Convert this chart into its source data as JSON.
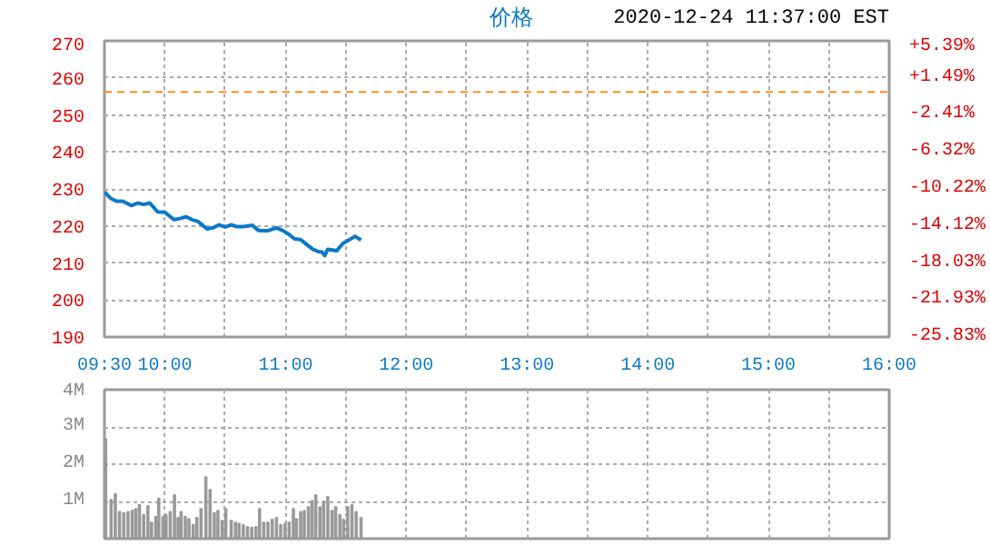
{
  "chart_data": [
    {
      "type": "line",
      "legend": "top",
      "grid": true,
      "marker": "none",
      "line_style": "solid",
      "annotations": [
        "2020-12-24 11:37:00 EST"
      ],
      "xlim": [
        9.5,
        16
      ],
      "xticks": [
        {
          "value": 9.5,
          "label": "09:30"
        },
        {
          "value": 10,
          "label": "10:00"
        },
        {
          "value": 10.5,
          "label": null
        },
        {
          "value": 11,
          "label": "11:00"
        },
        {
          "value": 11.5,
          "label": null
        },
        {
          "value": 12,
          "label": "12:00"
        },
        {
          "value": 12.5,
          "label": null
        },
        {
          "value": 13,
          "label": "13:00"
        },
        {
          "value": 13.5,
          "label": null
        },
        {
          "value": 14,
          "label": "14:00"
        },
        {
          "value": 14.5,
          "label": null
        },
        {
          "value": 15,
          "label": "15:00"
        },
        {
          "value": 15.5,
          "label": null
        },
        {
          "value": 16,
          "label": "16:00"
        }
      ],
      "ylim": [
        190,
        270
      ],
      "yticks": [
        190,
        200,
        210,
        220,
        230,
        240,
        250,
        260,
        270
      ],
      "y2lim": [
        -25.83,
        5.39
      ],
      "y2ticks": [
        {
          "value": -25.83,
          "label": "-25.83%"
        },
        {
          "value": -21.93,
          "label": "-21.93%"
        },
        {
          "value": -18.03,
          "label": "-18.03%"
        },
        {
          "value": -14.12,
          "label": "-14.12%"
        },
        {
          "value": -10.22,
          "label": "-10.22%"
        },
        {
          "value": -6.32,
          "label": "-6.32%"
        },
        {
          "value": -2.41,
          "label": "-2.41%"
        },
        {
          "value": 1.49,
          "label": "+1.49%"
        },
        {
          "value": 5.39,
          "label": "+5.39%"
        }
      ],
      "ref_lines": [
        {
          "axis": "y2",
          "value": 0,
          "label": null,
          "color": "#ff8c1a",
          "line_style": "dashed"
        }
      ],
      "series": [
        {
          "name": "价格",
          "color": "#0a78c8",
          "x": [
            9.5,
            9.55,
            9.6,
            9.65,
            9.725,
            9.775,
            9.825,
            9.875,
            9.9,
            9.94,
            10.0,
            10.075,
            10.125,
            10.175,
            10.225,
            10.275,
            10.35,
            10.4,
            10.45,
            10.5,
            10.55,
            10.6,
            10.65,
            10.725,
            10.775,
            10.85,
            10.925,
            10.975,
            11.025,
            11.075,
            11.125,
            11.175,
            11.225,
            11.275,
            11.3,
            11.325,
            11.35,
            11.425,
            11.475,
            11.525,
            11.575,
            11.625
          ],
          "values": [
            229.2,
            227.5,
            226.7,
            226.7,
            225.5,
            226.2,
            225.8,
            226.2,
            225.3,
            223.8,
            223.7,
            221.7,
            222,
            222.5,
            221.7,
            221.2,
            219.2,
            219.5,
            220.3,
            219.7,
            220.3,
            219.8,
            219.8,
            220.2,
            218.8,
            218.7,
            219.5,
            218.8,
            217.8,
            216.5,
            216.3,
            215,
            213.7,
            213,
            213,
            212,
            213.7,
            213.3,
            215.3,
            216.2,
            217.2,
            216.2
          ]
        }
      ]
    },
    {
      "type": "bar",
      "grid": true,
      "tick_labels": "y",
      "color": "#999999",
      "xlim": [
        9.5,
        16
      ],
      "xticks": [
        9.5,
        10,
        10.5,
        11,
        11.5,
        12,
        12.5,
        13,
        13.5,
        14,
        14.5,
        15,
        15.5,
        16
      ],
      "ylim": [
        0,
        4
      ],
      "yticks": [
        {
          "value": 0,
          "label": null
        },
        {
          "value": 1,
          "label": "1M"
        },
        {
          "value": 2,
          "label": "2M"
        },
        {
          "value": 3,
          "label": "3M"
        },
        {
          "value": 4,
          "label": "4M"
        }
      ],
      "x": [
        9.51,
        9.555,
        9.59,
        9.625,
        9.66,
        9.695,
        9.73,
        9.76,
        9.79,
        9.825,
        9.86,
        9.89,
        9.925,
        9.95,
        9.985,
        10.01,
        10.045,
        10.08,
        10.11,
        10.135,
        10.17,
        10.2,
        10.235,
        10.265,
        10.3,
        10.34,
        10.375,
        10.41,
        10.44,
        10.475,
        10.505,
        10.55,
        10.585,
        10.615,
        10.65,
        10.685,
        10.72,
        10.755,
        10.785,
        10.82,
        10.855,
        10.89,
        10.925,
        10.96,
        10.995,
        11.03,
        11.065,
        11.09,
        11.125,
        11.155,
        11.19,
        11.22,
        11.25,
        11.285,
        11.315,
        11.35,
        11.385,
        11.415,
        11.45,
        11.48,
        11.515,
        11.55,
        11.585,
        11.625
      ],
      "values": [
        2.67,
        1.04,
        1.2,
        0.72,
        0.69,
        0.72,
        0.75,
        0.8,
        0.91,
        0.64,
        0.88,
        0.43,
        0.59,
        1.08,
        0.59,
        0.64,
        0.72,
        1.17,
        0.56,
        0.72,
        0.59,
        0.53,
        0.37,
        0.56,
        0.8,
        1.65,
        1.31,
        0.69,
        0.75,
        0.48,
        0.8,
        0.48,
        0.43,
        0.4,
        0.37,
        0.32,
        0.3,
        0.32,
        0.8,
        0.43,
        0.43,
        0.51,
        0.56,
        0.37,
        0.4,
        0.43,
        0.8,
        0.53,
        0.72,
        0.75,
        0.85,
        1.01,
        1.17,
        0.85,
        1.0,
        1.12,
        0.75,
        0.85,
        0.64,
        0.51,
        0.85,
        0.91,
        0.72,
        0.56
      ]
    }
  ]
}
